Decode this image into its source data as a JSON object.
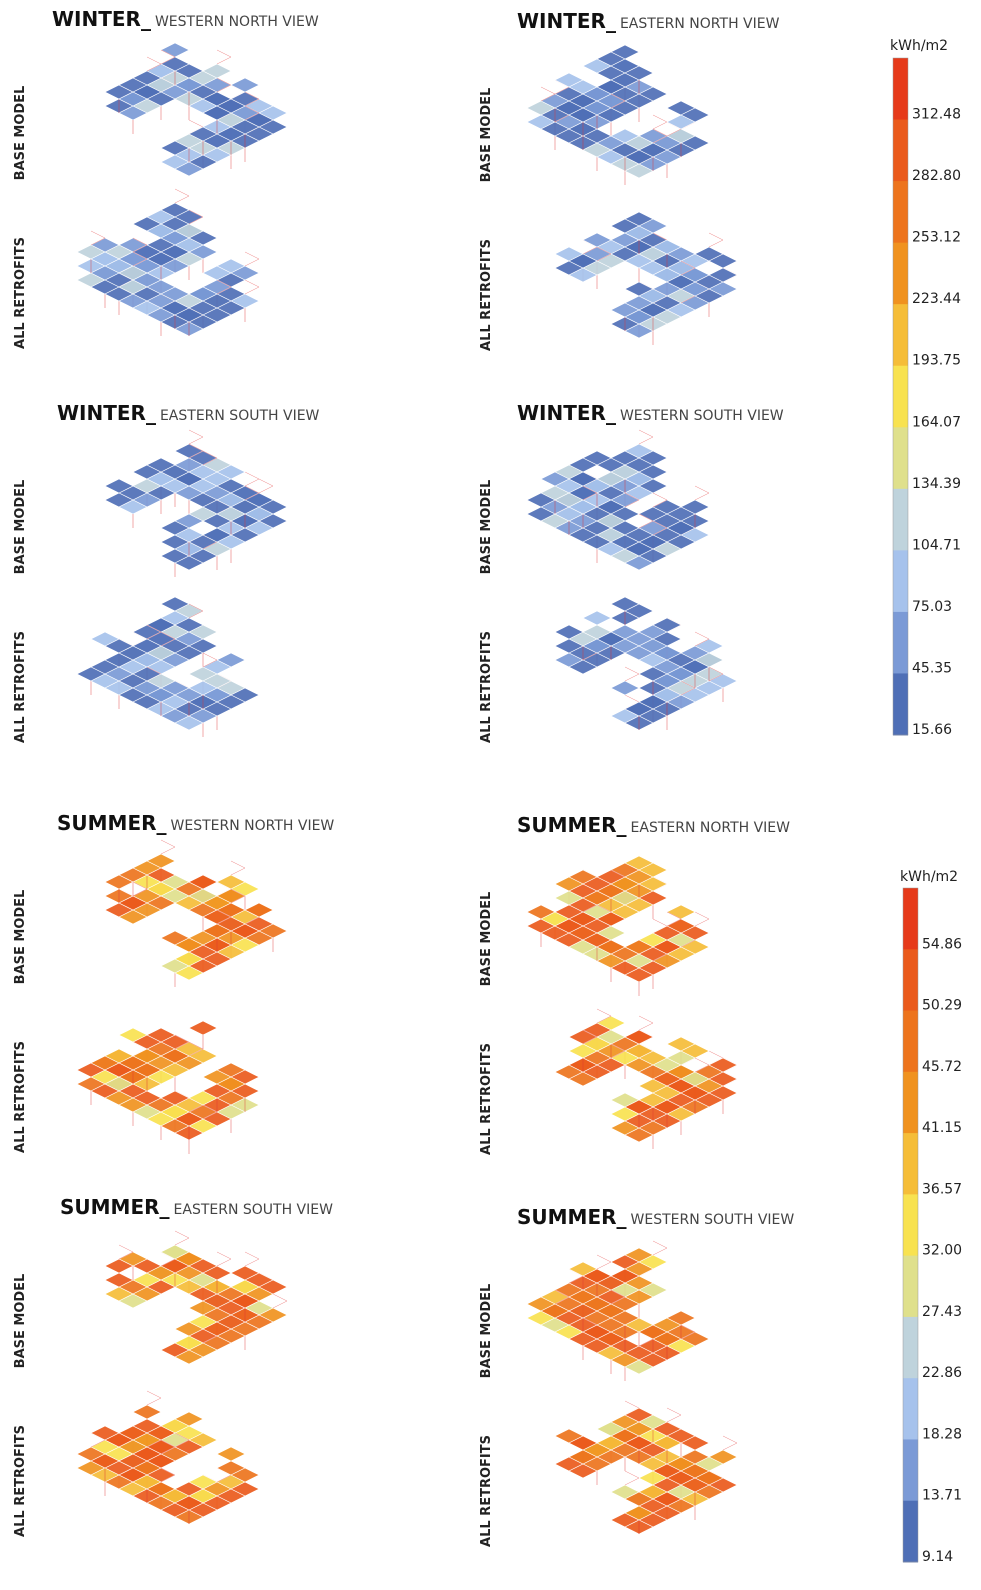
{
  "panels": [
    {
      "season": "WINTER_",
      "view": "WESTERN NORTH VIEW",
      "rows": [
        "BASE MODEL",
        "ALL RETROFITS"
      ]
    },
    {
      "season": "WINTER_",
      "view": "EASTERN NORTH VIEW",
      "rows": [
        "BASE MODEL",
        "ALL RETROFITS"
      ]
    },
    {
      "season": "WINTER_",
      "view": "EASTERN SOUTH VIEW",
      "rows": [
        "BASE MODEL",
        "ALL RETROFITS"
      ]
    },
    {
      "season": "WINTER_",
      "view": "WESTERN SOUTH VIEW",
      "rows": [
        "BASE MODEL",
        "ALL RETROFITS"
      ]
    },
    {
      "season": "SUMMER_",
      "view": "WESTERN NORTH VIEW",
      "rows": [
        "BASE MODEL",
        "ALL RETROFITS"
      ]
    },
    {
      "season": "SUMMER_",
      "view": "EASTERN NORTH VIEW",
      "rows": [
        "BASE MODEL",
        "ALL RETROFITS"
      ]
    },
    {
      "season": "SUMMER_",
      "view": "EASTERN SOUTH VIEW",
      "rows": [
        "BASE MODEL",
        "ALL RETROFITS"
      ]
    },
    {
      "season": "SUMMER_",
      "view": "WESTERN SOUTH VIEW",
      "rows": [
        "BASE MODEL",
        "ALL RETROFITS"
      ]
    }
  ],
  "legends": [
    {
      "unit": "kWh/m2",
      "ticks": [
        "312.48",
        "282.80",
        "253.12",
        "223.44",
        "193.75",
        "164.07",
        "134.39",
        "104.71",
        "75.03",
        "45.35",
        "15.66"
      ],
      "colors": [
        "#e63a1a",
        "#ea5a1c",
        "#ed741d",
        "#f0921f",
        "#f5bd38",
        "#f8e250",
        "#dfe08c",
        "#bfd3dc",
        "#a6c2ec",
        "#7b9ad6",
        "#4f6fb6"
      ]
    },
    {
      "unit": "kWh/m2",
      "ticks": [
        "54.86",
        "50.29",
        "45.72",
        "41.15",
        "36.57",
        "32.00",
        "27.43",
        "22.86",
        "18.28",
        "13.71",
        "9.14"
      ],
      "colors": [
        "#e63a1a",
        "#ea5a1c",
        "#ed741d",
        "#f0921f",
        "#f5bd38",
        "#f8e250",
        "#dfe08c",
        "#bfd3dc",
        "#a6c2ec",
        "#7b9ad6",
        "#4f6fb6"
      ]
    }
  ]
}
